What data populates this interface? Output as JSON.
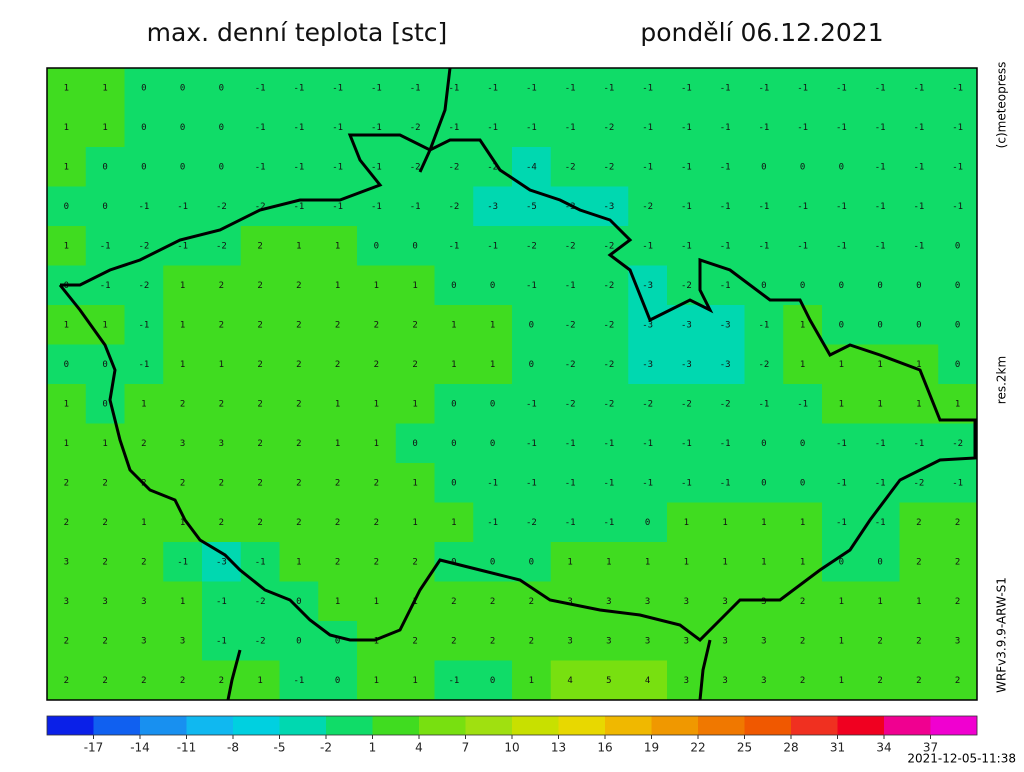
{
  "header": {
    "title": "max. denní teplota [stc]",
    "date": "pondělí 06.12.2021"
  },
  "side": {
    "copyright": "(c)meteopress",
    "resolution": "res.2km",
    "model": "WRFv3.9.9-ARW-S1"
  },
  "timestamp": "2021-12-05-11:38",
  "map": {
    "values": [
      [
        1,
        1,
        0,
        0,
        0,
        -1,
        -1,
        -1,
        -1,
        -1,
        -1,
        -1,
        -1,
        -1,
        -1,
        -1,
        -1,
        -1,
        -1,
        -1,
        -1,
        -1,
        -1,
        -1
      ],
      [
        1,
        1,
        0,
        0,
        0,
        -1,
        -1,
        -1,
        -1,
        -2,
        -1,
        -1,
        -1,
        -1,
        -2,
        -1,
        -1,
        -1,
        -1,
        -1,
        -1,
        -1,
        -1,
        -1
      ],
      [
        1,
        0,
        0,
        0,
        0,
        -1,
        -1,
        -1,
        -1,
        -2,
        -2,
        -2,
        -4,
        -2,
        -2,
        -1,
        -1,
        -1,
        0,
        0,
        0,
        -1,
        -1,
        -1
      ],
      [
        0,
        0,
        -1,
        -1,
        -2,
        -2,
        -1,
        -1,
        -1,
        -1,
        -2,
        -3,
        -5,
        -3,
        -3,
        -2,
        -1,
        -1,
        -1,
        -1,
        -1,
        -1,
        -1,
        -1
      ],
      [
        1,
        -1,
        -2,
        -1,
        -2,
        2,
        1,
        1,
        0,
        0,
        -1,
        -1,
        -2,
        -2,
        -2,
        -1,
        -1,
        -1,
        -1,
        -1,
        -1,
        -1,
        -1,
        0
      ],
      [
        0,
        -1,
        -2,
        1,
        2,
        2,
        2,
        1,
        1,
        1,
        0,
        0,
        -1,
        -1,
        -2,
        -3,
        -2,
        -1,
        0,
        0,
        0,
        0,
        0,
        0
      ],
      [
        1,
        1,
        -1,
        1,
        2,
        2,
        2,
        2,
        2,
        2,
        1,
        1,
        0,
        -2,
        -2,
        -3,
        -3,
        -3,
        -1,
        1,
        0,
        0,
        0,
        0
      ],
      [
        0,
        0,
        -1,
        1,
        1,
        2,
        2,
        2,
        2,
        2,
        1,
        1,
        0,
        -2,
        -2,
        -3,
        -3,
        -3,
        -2,
        1,
        1,
        1,
        1,
        0
      ],
      [
        1,
        0,
        1,
        2,
        2,
        2,
        2,
        1,
        1,
        1,
        0,
        0,
        -1,
        -2,
        -2,
        -2,
        -2,
        -2,
        -1,
        -1,
        1,
        1,
        1,
        1
      ],
      [
        1,
        1,
        2,
        3,
        3,
        2,
        2,
        1,
        1,
        0,
        0,
        0,
        -1,
        -1,
        -1,
        -1,
        -1,
        -1,
        0,
        0,
        -1,
        -1,
        -1,
        -2
      ],
      [
        2,
        2,
        2,
        2,
        2,
        2,
        2,
        2,
        2,
        1,
        0,
        -1,
        -1,
        -1,
        -1,
        -1,
        -1,
        -1,
        0,
        0,
        -1,
        -1,
        -2,
        -1
      ],
      [
        2,
        2,
        1,
        1,
        2,
        2,
        2,
        2,
        2,
        1,
        1,
        -1,
        -2,
        -1,
        -1,
        0,
        1,
        1,
        1,
        1,
        -1,
        -1,
        2,
        2
      ],
      [
        3,
        2,
        2,
        -1,
        -3,
        -1,
        1,
        2,
        2,
        2,
        0,
        0,
        0,
        1,
        1,
        1,
        1,
        1,
        1,
        1,
        0,
        0,
        2,
        2
      ],
      [
        3,
        3,
        3,
        1,
        -1,
        -2,
        0,
        1,
        1,
        1,
        2,
        2,
        2,
        3,
        3,
        3,
        3,
        3,
        3,
        2,
        1,
        1,
        1,
        2
      ],
      [
        2,
        2,
        3,
        3,
        -1,
        -2,
        0,
        0,
        1,
        2,
        2,
        2,
        2,
        3,
        3,
        3,
        3,
        3,
        3,
        2,
        1,
        2,
        2,
        3
      ],
      [
        2,
        2,
        2,
        2,
        2,
        1,
        -1,
        0,
        1,
        1,
        -1,
        0,
        1,
        4,
        5,
        4,
        3,
        3,
        3,
        2,
        1,
        2,
        2,
        2
      ]
    ]
  },
  "colorbar": {
    "xlim": [
      -20,
      40
    ],
    "ticks": [
      -17,
      -14,
      -11,
      -8,
      -5,
      -2,
      1,
      4,
      7,
      10,
      13,
      16,
      19,
      22,
      25,
      28,
      31,
      34,
      37
    ],
    "colors": [
      "#0a20e8",
      "#1060f0",
      "#1890f0",
      "#10b8f0",
      "#00d0e0",
      "#00d8b0",
      "#10dc68",
      "#40dc20",
      "#78e010",
      "#a0e010",
      "#c8e000",
      "#e8d800",
      "#f0b800",
      "#f09800",
      "#f07800",
      "#f05800",
      "#f03020",
      "#f00020",
      "#f00090",
      "#f000d0"
    ]
  }
}
